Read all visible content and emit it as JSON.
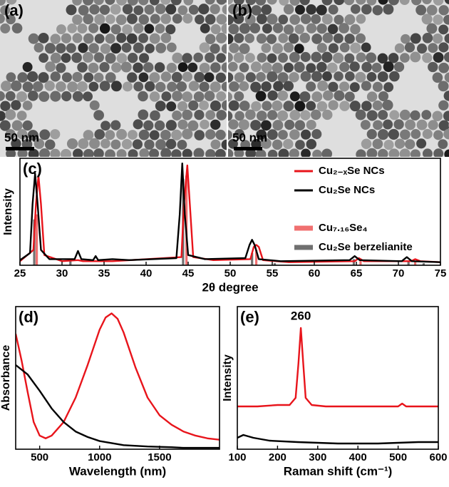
{
  "images": [
    {
      "label": "(a)",
      "scale_bar": "50 nm"
    },
    {
      "label": "(b)",
      "scale_bar": "50 nm"
    }
  ],
  "chart_data": [
    {
      "type": "line",
      "label": "(c)",
      "xlabel": "2θ degree",
      "ylabel": "Intensity",
      "xlim": [
        25,
        75
      ],
      "xticks": [
        25,
        30,
        35,
        40,
        45,
        50,
        55,
        60,
        65,
        70,
        75
      ],
      "ylim": [
        0,
        1.05
      ],
      "legend": "upper right",
      "series": [
        {
          "name": "Cu₂₋ₓSe NCs",
          "color": "#e8141b",
          "type": "line",
          "x": [
            25,
            26.6,
            26.9,
            27.2,
            27.5,
            27.9,
            30,
            31.9,
            32.5,
            34,
            36,
            44.2,
            44.5,
            44.9,
            45.2,
            45.6,
            48,
            52.4,
            52.8,
            53.1,
            53.4,
            53.9,
            57,
            64.8,
            65.3,
            65.9,
            71.5,
            72.0,
            72.6,
            75
          ],
          "values": [
            0.04,
            0.15,
            0.6,
            0.88,
            0.6,
            0.1,
            0.04,
            0.05,
            0.04,
            0.04,
            0.04,
            0.08,
            0.6,
            0.98,
            0.6,
            0.08,
            0.05,
            0.06,
            0.18,
            0.2,
            0.18,
            0.05,
            0.03,
            0.04,
            0.07,
            0.04,
            0.04,
            0.06,
            0.04,
            0.03
          ]
        },
        {
          "name": "Cu₂Se NCs",
          "color": "#000000",
          "type": "line",
          "x": [
            25,
            26.2,
            26.5,
            26.8,
            27.1,
            27.5,
            28.5,
            31.5,
            31.9,
            32.3,
            33.7,
            34.0,
            34.3,
            36,
            38,
            43.6,
            44.0,
            44.3,
            44.6,
            45.0,
            47,
            51.8,
            52.3,
            52.6,
            52.9,
            53.4,
            56,
            64.2,
            64.8,
            65.4,
            70.4,
            71.0,
            71.6,
            75
          ],
          "values": [
            0.05,
            0.12,
            0.6,
            0.9,
            0.6,
            0.15,
            0.06,
            0.06,
            0.14,
            0.06,
            0.05,
            0.09,
            0.05,
            0.06,
            0.05,
            0.07,
            0.5,
            1.0,
            0.5,
            0.1,
            0.06,
            0.07,
            0.2,
            0.25,
            0.2,
            0.06,
            0.04,
            0.05,
            0.09,
            0.05,
            0.04,
            0.08,
            0.04,
            0.03
          ]
        },
        {
          "name": "Cu₇.₁₆Se₄",
          "color": "#f07070",
          "type": "stem",
          "x": [
            27.0,
            44.8,
            53.1,
            65.5,
            72.0
          ],
          "values": [
            0.5,
            0.88,
            0.15,
            0.05,
            0.04
          ]
        },
        {
          "name": "Cu₂Se berzelianite",
          "color": "#707070",
          "type": "stem",
          "x": [
            26.7,
            31.0,
            44.4,
            52.6,
            55.3,
            64.7,
            71.2,
            73.0
          ],
          "values": [
            0.45,
            0.05,
            0.85,
            0.12,
            0.02,
            0.06,
            0.04,
            0.02
          ]
        }
      ]
    },
    {
      "type": "line",
      "label": "(d)",
      "xlabel": "Wavelength (nm)",
      "ylabel": "Absorbance",
      "xlim": [
        300,
        2000
      ],
      "xticks": [
        500,
        1000,
        1500
      ],
      "ylim": [
        0,
        1.05
      ],
      "series": [
        {
          "color": "#e8141b",
          "type": "line",
          "x": [
            300,
            350,
            400,
            450,
            500,
            550,
            600,
            700,
            800,
            900,
            1000,
            1050,
            1100,
            1150,
            1200,
            1300,
            1400,
            1500,
            1600,
            1700,
            1800,
            1900,
            2000
          ],
          "values": [
            0.85,
            0.65,
            0.42,
            0.2,
            0.1,
            0.08,
            0.1,
            0.2,
            0.38,
            0.62,
            0.88,
            0.97,
            1.0,
            0.96,
            0.86,
            0.6,
            0.38,
            0.25,
            0.18,
            0.13,
            0.1,
            0.08,
            0.07
          ]
        },
        {
          "color": "#000000",
          "type": "line",
          "x": [
            300,
            400,
            500,
            600,
            700,
            800,
            900,
            1000,
            1200,
            1400,
            1600,
            1700,
            1800,
            2000
          ],
          "values": [
            0.62,
            0.55,
            0.43,
            0.3,
            0.2,
            0.13,
            0.09,
            0.06,
            0.03,
            0.02,
            0.015,
            0.01,
            0.01,
            0.01
          ]
        }
      ]
    },
    {
      "type": "line",
      "label": "(e)",
      "xlabel": "Raman shift (cm⁻¹)",
      "ylabel": "Intensity",
      "annotation": "260",
      "xlim": [
        100,
        600
      ],
      "xticks": [
        100,
        200,
        300,
        400,
        500,
        600
      ],
      "ylim": [
        0,
        1
      ],
      "series": [
        {
          "color": "#e8141b",
          "type": "line",
          "x": [
            100,
            150,
            200,
            230,
            245,
            252,
            258,
            264,
            270,
            285,
            320,
            400,
            500,
            510,
            520,
            600
          ],
          "values": [
            0.3,
            0.3,
            0.31,
            0.31,
            0.36,
            0.6,
            0.85,
            0.6,
            0.36,
            0.31,
            0.3,
            0.3,
            0.3,
            0.32,
            0.3,
            0.3
          ]
        },
        {
          "color": "#000000",
          "type": "line",
          "x": [
            100,
            115,
            140,
            180,
            250,
            350,
            450,
            550,
            600
          ],
          "values": [
            0.08,
            0.1,
            0.08,
            0.06,
            0.05,
            0.04,
            0.04,
            0.05,
            0.05
          ]
        }
      ]
    }
  ]
}
